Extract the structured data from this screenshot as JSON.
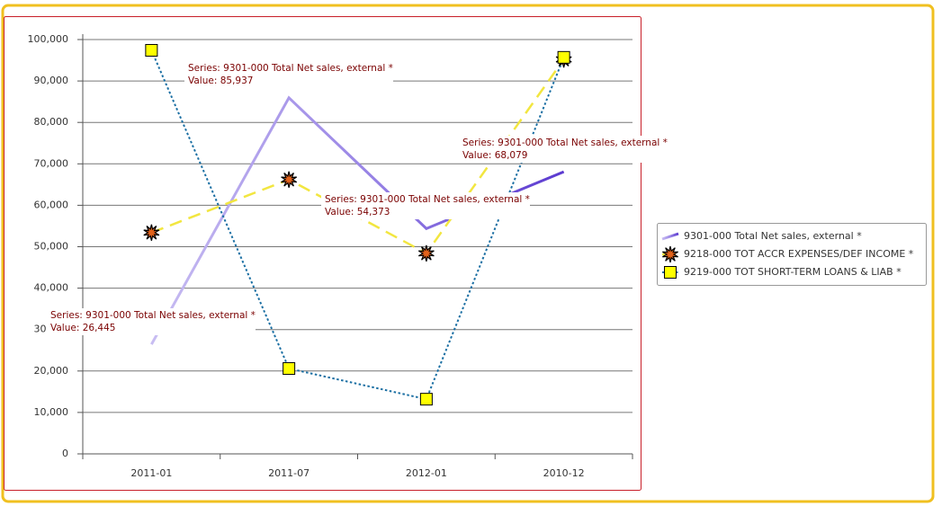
{
  "chart_data": {
    "type": "line",
    "categories": [
      "2011-01",
      "2011-07",
      "2012-01",
      "2010-12"
    ],
    "series": [
      {
        "name": "9301-000 Total Net sales, external *",
        "color": "#8e74e0",
        "style": "solid",
        "values": [
          26445,
          85937,
          54373,
          68079
        ]
      },
      {
        "name": "9218-000 TOT ACCR EXPENSES/DEF INCOME *",
        "color": "#f2e640",
        "style": "dashed",
        "marker": "star",
        "marker_color": "#e2621b",
        "values": [
          53400,
          66200,
          48400,
          95200
        ]
      },
      {
        "name": "9219-000 TOT SHORT-TERM LOANS & LIAB *",
        "color": "#1b6fa3",
        "style": "dotted",
        "marker": "square",
        "marker_color": "#ffff00",
        "values": [
          97400,
          20600,
          13200,
          95700
        ]
      }
    ],
    "ylim": [
      0,
      100000
    ],
    "yticks": [
      0,
      {
        "value": 10000,
        "label": "10,000"
      },
      {
        "value": 20000,
        "label": "20,000"
      },
      {
        "value": 30000,
        "label": "30,000"
      },
      {
        "value": 40000,
        "label": "40,000"
      },
      {
        "value": 50000,
        "label": "50,000"
      },
      {
        "value": 60000,
        "label": "60,000"
      },
      {
        "value": 70000,
        "label": "70,000"
      },
      {
        "value": 80000,
        "label": "80,000"
      },
      {
        "value": 90000,
        "label": "90,000"
      },
      {
        "value": 100000,
        "label": "100,000"
      }
    ],
    "grid": true,
    "legend": "right",
    "annotations": [
      {
        "series": "Series: 9301-000 Total Net sales, external *",
        "value": "Value: 85,937"
      },
      {
        "series": "Series: 9301-000 Total Net sales, external *",
        "value": "Value: 68,079"
      },
      {
        "series": "Series: 9301-000 Total Net sales, external *",
        "value": "Value: 54,373"
      },
      {
        "series": "Series: 9301-000 Total Net sales, external *",
        "value": "Value: 26,445"
      }
    ]
  }
}
